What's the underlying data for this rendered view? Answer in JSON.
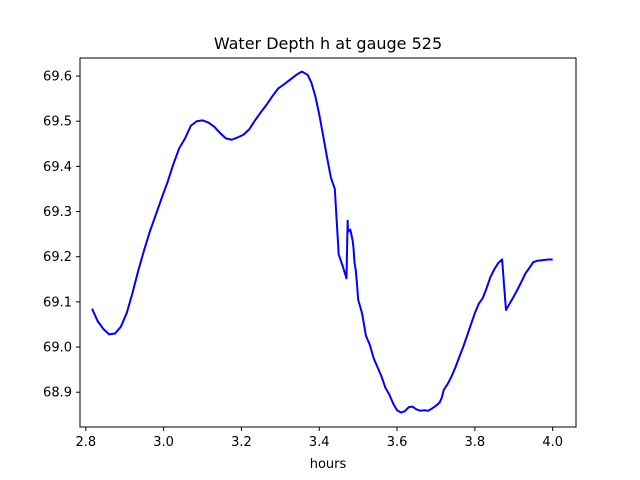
{
  "chart_data": {
    "type": "line",
    "title": "Water Depth h at gauge 525",
    "xlabel": "hours",
    "ylabel": "",
    "xlim": [
      2.785,
      4.06
    ],
    "ylim": [
      68.823,
      69.64
    ],
    "grid": false,
    "x_ticks": [
      2.8,
      3.0,
      3.2,
      3.4,
      3.6,
      3.8,
      4.0
    ],
    "x_tick_labels": [
      "2.8",
      "3.0",
      "3.2",
      "3.4",
      "3.6",
      "3.8",
      "4.0"
    ],
    "y_ticks": [
      68.9,
      69.0,
      69.1,
      69.2,
      69.3,
      69.4,
      69.5,
      69.6
    ],
    "y_tick_labels": [
      "68.9",
      "69.0",
      "69.1",
      "69.2",
      "69.3",
      "69.4",
      "69.5",
      "69.6"
    ],
    "colors": {
      "line": "#0000ff",
      "axes": "#000000",
      "background": "#ffffff"
    },
    "series": [
      {
        "x": [
          2.816,
          2.83,
          2.845,
          2.86,
          2.875,
          2.89,
          2.905,
          2.92,
          2.935,
          2.95,
          2.965,
          2.98,
          2.995,
          3.01,
          3.025,
          3.04,
          3.055,
          3.07,
          3.085,
          3.1,
          3.115,
          3.13,
          3.145,
          3.16,
          3.175,
          3.19,
          3.205,
          3.22,
          3.235,
          3.25,
          3.265,
          3.28,
          3.295,
          3.31,
          3.325,
          3.34,
          3.355,
          3.37,
          3.38,
          3.39,
          3.4,
          3.41,
          3.42,
          3.43,
          3.44,
          3.45,
          3.46,
          3.47,
          3.473,
          3.474,
          3.48,
          3.486,
          3.488,
          3.49,
          3.491,
          3.494,
          3.497,
          3.5,
          3.505,
          3.51,
          3.515,
          3.52,
          3.53,
          3.54,
          3.55,
          3.56,
          3.57,
          3.58,
          3.59,
          3.6,
          3.61,
          3.62,
          3.63,
          3.64,
          3.65,
          3.66,
          3.67,
          3.68,
          3.69,
          3.7,
          3.705,
          3.71,
          3.715,
          3.72,
          3.73,
          3.74,
          3.75,
          3.76,
          3.77,
          3.78,
          3.79,
          3.8,
          3.81,
          3.82,
          3.83,
          3.84,
          3.85,
          3.86,
          3.87,
          3.88,
          3.89,
          3.9,
          3.91,
          3.92,
          3.93,
          3.94,
          3.95,
          3.96,
          3.97,
          3.98,
          3.99,
          4.0
        ],
        "y": [
          69.085,
          69.058,
          69.04,
          69.028,
          69.03,
          69.045,
          69.075,
          69.12,
          69.17,
          69.215,
          69.257,
          69.293,
          69.33,
          69.365,
          69.405,
          69.44,
          69.462,
          69.49,
          69.5,
          69.502,
          69.497,
          69.488,
          69.474,
          69.462,
          69.459,
          69.464,
          69.47,
          69.482,
          69.502,
          69.52,
          69.537,
          69.556,
          69.573,
          69.582,
          69.592,
          69.602,
          69.61,
          69.603,
          69.585,
          69.555,
          69.515,
          69.468,
          69.42,
          69.375,
          69.35,
          69.205,
          69.18,
          69.152,
          69.28,
          69.255,
          69.26,
          69.235,
          69.22,
          69.195,
          69.185,
          69.17,
          69.14,
          69.105,
          69.09,
          69.075,
          69.05,
          69.025,
          69.005,
          68.975,
          68.955,
          68.935,
          68.91,
          68.895,
          68.875,
          68.86,
          68.855,
          68.858,
          68.867,
          68.868,
          68.862,
          68.859,
          68.86,
          68.859,
          68.864,
          68.87,
          68.874,
          68.878,
          68.888,
          68.905,
          68.918,
          68.935,
          68.955,
          68.978,
          69.0,
          69.025,
          69.05,
          69.075,
          69.096,
          69.108,
          69.13,
          69.155,
          69.172,
          69.186,
          69.194,
          69.082,
          69.097,
          69.112,
          69.128,
          69.145,
          69.163,
          69.175,
          69.188,
          69.191,
          69.192,
          69.193,
          69.194,
          69.194
        ]
      }
    ]
  }
}
